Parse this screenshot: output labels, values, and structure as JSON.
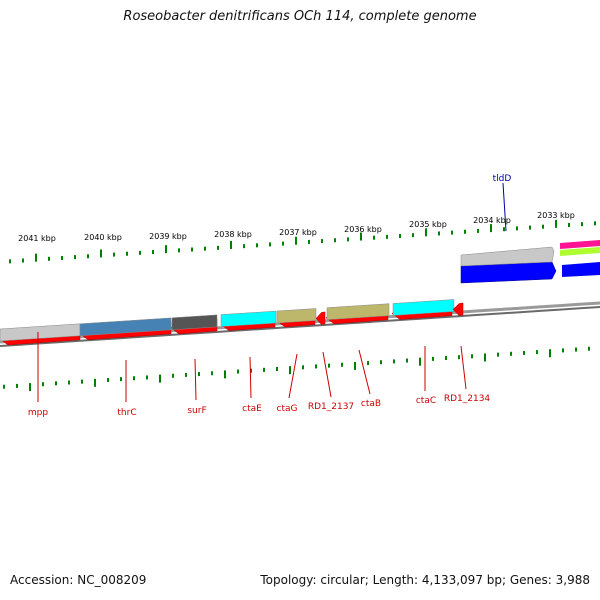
{
  "title": "Roseobacter denitrificans OCh 114, complete genome",
  "footer": {
    "accession": "Accession: NC_008209",
    "summary": "Topology: circular; Length: 4,133,097 bp; Genes: 3,988"
  },
  "colors": {
    "forward_cds": "#ff0000",
    "tick": "#008000",
    "axis": "#8a8a8a",
    "label_red": "#cc0000",
    "label_blue": "#0000aa"
  },
  "scale": {
    "unit": "kbp",
    "labels": [
      "2041 kbp",
      "2040 kbp",
      "2039 kbp",
      "2038 kbp",
      "2037 kbp",
      "2036 kbp",
      "2035 kbp",
      "2034 kbp",
      "2033 kbp"
    ]
  },
  "genes": [
    {
      "name": "mpp",
      "color": "#ff0000",
      "cog_color": "#c8c8c8"
    },
    {
      "name": "thrC",
      "color": "#ff0000",
      "cog_color": "#4682b4"
    },
    {
      "name": "surF",
      "color": "#ff0000",
      "cog_color": "#555555"
    },
    {
      "name": "ctaE",
      "color": "#ff0000",
      "cog_color": "#00ffff"
    },
    {
      "name": "ctaG",
      "color": "#ff0000",
      "cog_color": "#bdb76b"
    },
    {
      "name": "RD1_2137",
      "color": "#ff0000",
      "cog_color": ""
    },
    {
      "name": "ctaB",
      "color": "#ff0000",
      "cog_color": "#bdb76b"
    },
    {
      "name": "ctaC",
      "color": "#ff0000",
      "cog_color": "#00ffff"
    },
    {
      "name": "RD1_2134",
      "color": "#ff0000",
      "cog_color": ""
    },
    {
      "name": "tldD",
      "color": "#0000ff",
      "cog_color": "#c8c8c8"
    }
  ]
}
